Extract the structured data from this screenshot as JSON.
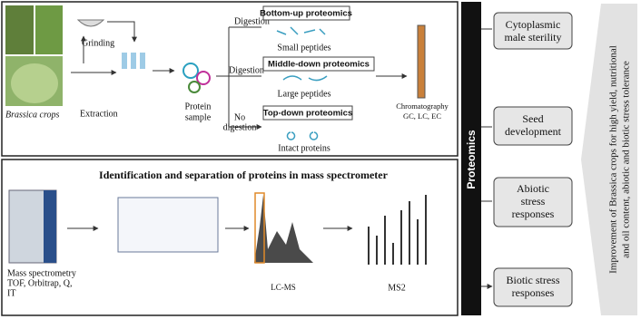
{
  "top_panel": {
    "crops_label": "Brassica crops",
    "grinding": "Grinding",
    "extraction": "Extraction",
    "protein_sample": [
      "Protein",
      "sample"
    ],
    "branches": [
      {
        "digestion": [
          "Digestion"
        ],
        "method": "Bottom-up proteomics",
        "product": "Small peptides"
      },
      {
        "digestion": [
          "Digestion"
        ],
        "method": "Middle-down proteomics",
        "product": "Large peptides"
      },
      {
        "digestion": [
          "No",
          "digestion"
        ],
        "method": "Top-down proteomics",
        "product": "Intact proteins"
      }
    ],
    "chromatography": [
      "Chromatography",
      "GC, LC, EC"
    ]
  },
  "bottom_panel": {
    "title": "Identification and separation of proteins in mass spectrometer",
    "ms_label": [
      "Mass spectrometry",
      "TOF, Orbitrap, Q,",
      "IT"
    ],
    "lcms": "LC-MS",
    "ms2": "MS2"
  },
  "sidebar": "Proteomics",
  "applications": [
    [
      "Cytoplasmic",
      "male sterility"
    ],
    [
      "Seed",
      "development"
    ],
    [
      "Abiotic",
      "stress",
      "responses"
    ],
    [
      "Biotic stress",
      "responses"
    ]
  ],
  "outcome": [
    "Improvement of Brassica crops for high yield, nutritional",
    "and oil content, abiotic and biotic stress tolerance"
  ]
}
